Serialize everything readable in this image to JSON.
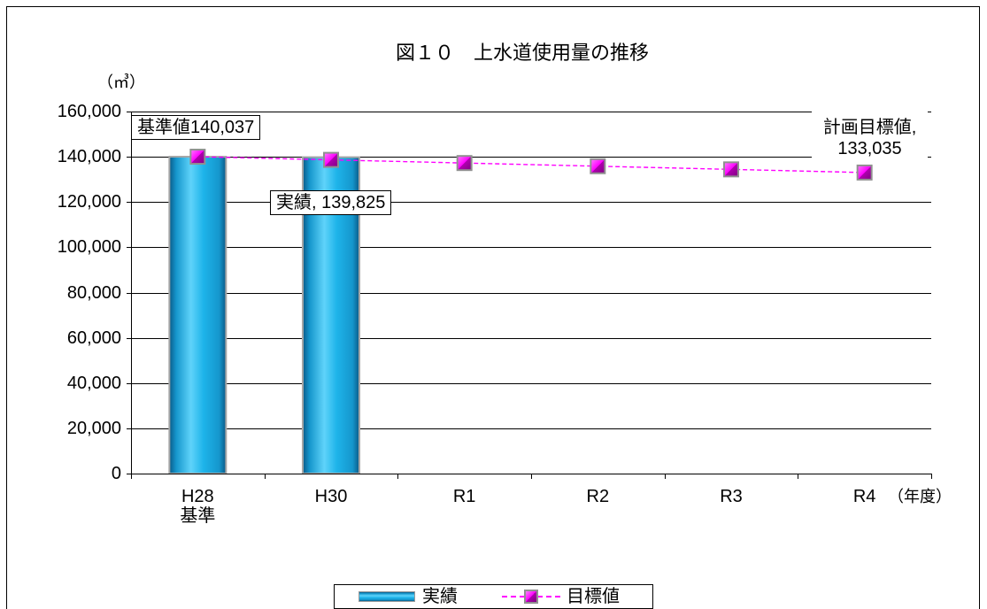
{
  "chart_data": {
    "type": "bar",
    "title": "図１０　上水道使用量の推移",
    "xlabel": "（年度）",
    "ylabel": "（㎥）",
    "categories": [
      [
        "H28",
        "基準"
      ],
      [
        "H30"
      ],
      [
        "R1"
      ],
      [
        "R2"
      ],
      [
        "R3"
      ],
      [
        "R4"
      ]
    ],
    "series": [
      {
        "name": "実績",
        "type": "bar",
        "color": "#1eb4ea",
        "values": [
          140037,
          139825,
          null,
          null,
          null,
          null
        ]
      },
      {
        "name": "目標値",
        "type": "line",
        "color": "#ff00ff",
        "line_style": "dashed",
        "marker": "square",
        "values": [
          140037,
          138637,
          137236,
          135836,
          134436,
          133035
        ]
      }
    ],
    "ylim": [
      0,
      160000
    ],
    "yticks": [
      0,
      20000,
      40000,
      60000,
      80000,
      100000,
      120000,
      140000,
      160000
    ],
    "ytick_labels": [
      "0",
      "20,000",
      "40,000",
      "60,000",
      "80,000",
      "100,000",
      "120,000",
      "140,000",
      "160,000"
    ],
    "grid": true,
    "legend": "bottom",
    "annotations": [
      {
        "series_index": 0,
        "point_index": 0,
        "boxed": true,
        "lines": [
          "基準値140,037"
        ]
      },
      {
        "series_index": 0,
        "point_index": 1,
        "boxed": true,
        "lines": [
          "実績, 139,825"
        ]
      },
      {
        "series_index": 1,
        "point_index": 5,
        "boxed": false,
        "lines": [
          "計画目標値,",
          "133,035"
        ]
      }
    ]
  }
}
